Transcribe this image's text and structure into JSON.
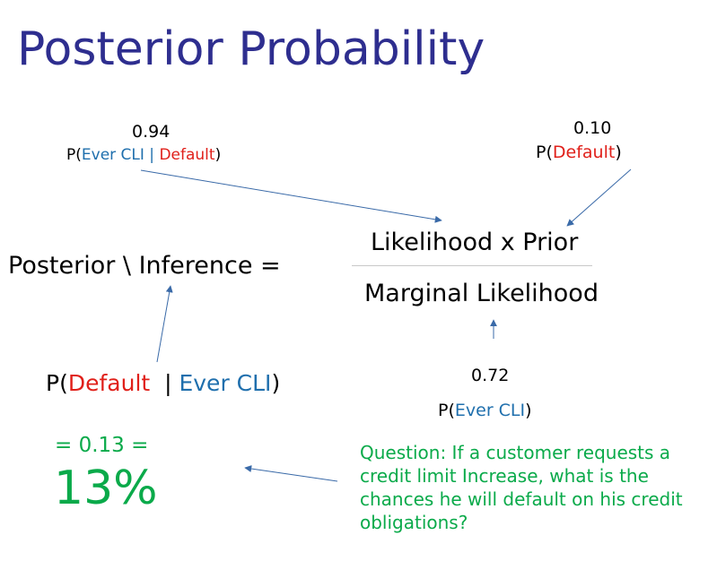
{
  "title": "Posterior Probability",
  "colors": {
    "title": "#2e2e8f",
    "black": "#000000",
    "blue": "#1f6fad",
    "red": "#e0201a",
    "green": "#0aaa4a",
    "arrow": "#3a6aa8"
  },
  "likelihood": {
    "value": "0.94",
    "p_open": "P(",
    "ever_cli": "Ever CLI",
    "bar": " | ",
    "default": "Default",
    "p_close": ")"
  },
  "prior": {
    "value": "0.10",
    "p_open": "P(",
    "default": "Default",
    "p_close": ")"
  },
  "equation": {
    "lhs": "Posterior \\ Inference  =",
    "numerator": "Likelihood x Prior",
    "denominator": "Marginal Likelihood"
  },
  "posterior": {
    "p_open": "P(",
    "default": "Default",
    "bar": "  | ",
    "ever_cli": "Ever CLI",
    "p_close": ")",
    "equals": "= 0.13 =",
    "percent": "13%"
  },
  "marginal": {
    "value": "0.72",
    "p_open": "P(",
    "ever_cli": "Ever CLI",
    "p_close": ")"
  },
  "question": "Question: If a customer requests a credit limit Increase,  what is the chances he will default on his credit obligations?"
}
